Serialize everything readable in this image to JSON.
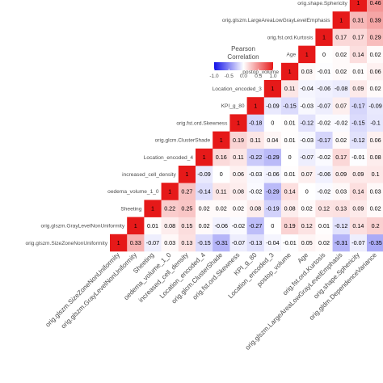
{
  "chart_data": {
    "type": "heatmap",
    "legend": {
      "title_line1": "Pearson",
      "title_line2": "Correlation",
      "ticks": [
        "-1.0",
        "-0.5",
        "0.0",
        "0.5",
        "1.0"
      ],
      "tick_values": [
        -1.0,
        -0.5,
        0.0,
        0.5,
        1.0
      ],
      "range": [
        -1,
        1
      ],
      "placement": "top-center"
    },
    "colors": {
      "negative": "#1010e8",
      "zero": "#ffffff",
      "positive": "#e61919"
    },
    "variables": [
      "orig.glszm.SizeZoneNonUniformity",
      "orig.glszm.GrayLevelNonUniformity",
      "Sheeting",
      "oedema_volume_1_0",
      "increased_cell_density",
      "Location_encoded_4",
      "orig.glcm.ClusterShade",
      "orig.fst.ord.Skewness",
      "KPI_g_80",
      "Location_encoded_3",
      "postop_volume",
      "Age",
      "orig.fst.ord.Kurtosis",
      "orig.glszm.LargeAreaLowGrayLevelEmphasis",
      "orig.shape.Sphericity",
      "orig.gldm.DependenceVariance"
    ],
    "cells": [
      {
        "row": 0,
        "col": 0,
        "value": 1,
        "label": "1"
      },
      {
        "row": 0,
        "col": 1,
        "value": 0.33,
        "label": "0.33"
      },
      {
        "row": 0,
        "col": 2,
        "value": -0.07,
        "label": "-0.07"
      },
      {
        "row": 0,
        "col": 3,
        "value": 0.03,
        "label": "0.03"
      },
      {
        "row": 0,
        "col": 4,
        "value": 0.13,
        "label": "0.13"
      },
      {
        "row": 0,
        "col": 5,
        "value": -0.15,
        "label": "-0.15"
      },
      {
        "row": 0,
        "col": 6,
        "value": -0.31,
        "label": "-0.31"
      },
      {
        "row": 0,
        "col": 7,
        "value": -0.07,
        "label": "-0.07"
      },
      {
        "row": 0,
        "col": 8,
        "value": -0.13,
        "label": "-0.13"
      },
      {
        "row": 0,
        "col": 9,
        "value": -0.04,
        "label": "-0.04"
      },
      {
        "row": 0,
        "col": 10,
        "value": -0.01,
        "label": "-0.01"
      },
      {
        "row": 0,
        "col": 11,
        "value": 0.05,
        "label": "0.05"
      },
      {
        "row": 0,
        "col": 12,
        "value": 0.02,
        "label": "0.02"
      },
      {
        "row": 0,
        "col": 13,
        "value": -0.31,
        "label": "-0.31"
      },
      {
        "row": 0,
        "col": 14,
        "value": -0.07,
        "label": "-0.07"
      },
      {
        "row": 0,
        "col": 15,
        "value": -0.35,
        "label": "-0.35"
      },
      {
        "row": 1,
        "col": 1,
        "value": 1,
        "label": "1"
      },
      {
        "row": 1,
        "col": 2,
        "value": 0.01,
        "label": "0.01"
      },
      {
        "row": 1,
        "col": 3,
        "value": 0.08,
        "label": "0.08"
      },
      {
        "row": 1,
        "col": 4,
        "value": 0.15,
        "label": "0.15"
      },
      {
        "row": 1,
        "col": 5,
        "value": 0.02,
        "label": "0.02"
      },
      {
        "row": 1,
        "col": 6,
        "value": -0.06,
        "label": "-0.06"
      },
      {
        "row": 1,
        "col": 7,
        "value": -0.02,
        "label": "-0.02"
      },
      {
        "row": 1,
        "col": 8,
        "value": -0.27,
        "label": "-0.27"
      },
      {
        "row": 1,
        "col": 9,
        "value": 0,
        "label": "0"
      },
      {
        "row": 1,
        "col": 10,
        "value": 0.19,
        "label": "0.19"
      },
      {
        "row": 1,
        "col": 11,
        "value": 0.12,
        "label": "0.12"
      },
      {
        "row": 1,
        "col": 12,
        "value": 0.01,
        "label": "0.01"
      },
      {
        "row": 1,
        "col": 13,
        "value": -0.12,
        "label": "-0.12"
      },
      {
        "row": 1,
        "col": 14,
        "value": 0.14,
        "label": "0.14"
      },
      {
        "row": 1,
        "col": 15,
        "value": 0.2,
        "label": "0.2"
      },
      {
        "row": 2,
        "col": 2,
        "value": 1,
        "label": "1"
      },
      {
        "row": 2,
        "col": 3,
        "value": 0.22,
        "label": "0.22"
      },
      {
        "row": 2,
        "col": 4,
        "value": 0.25,
        "label": "0.25"
      },
      {
        "row": 2,
        "col": 5,
        "value": 0.02,
        "label": "0.02"
      },
      {
        "row": 2,
        "col": 6,
        "value": 0.02,
        "label": "0.02"
      },
      {
        "row": 2,
        "col": 7,
        "value": 0.02,
        "label": "0.02"
      },
      {
        "row": 2,
        "col": 8,
        "value": 0.08,
        "label": "0.08"
      },
      {
        "row": 2,
        "col": 9,
        "value": -0.19,
        "label": "-0.19"
      },
      {
        "row": 2,
        "col": 10,
        "value": 0.08,
        "label": "0.08"
      },
      {
        "row": 2,
        "col": 11,
        "value": 0.02,
        "label": "0.02"
      },
      {
        "row": 2,
        "col": 12,
        "value": 0.12,
        "label": "0.12"
      },
      {
        "row": 2,
        "col": 13,
        "value": 0.13,
        "label": "0.13"
      },
      {
        "row": 2,
        "col": 14,
        "value": 0.09,
        "label": "0.09"
      },
      {
        "row": 2,
        "col": 15,
        "value": 0.02,
        "label": "0.02"
      },
      {
        "row": 3,
        "col": 3,
        "value": 1,
        "label": "1"
      },
      {
        "row": 3,
        "col": 4,
        "value": 0.27,
        "label": "0.27"
      },
      {
        "row": 3,
        "col": 5,
        "value": -0.14,
        "label": "-0.14"
      },
      {
        "row": 3,
        "col": 6,
        "value": 0.11,
        "label": "0.11"
      },
      {
        "row": 3,
        "col": 7,
        "value": 0.08,
        "label": "0.08"
      },
      {
        "row": 3,
        "col": 8,
        "value": -0.02,
        "label": "-0.02"
      },
      {
        "row": 3,
        "col": 9,
        "value": -0.29,
        "label": "-0.29"
      },
      {
        "row": 3,
        "col": 10,
        "value": 0.14,
        "label": "0.14"
      },
      {
        "row": 3,
        "col": 11,
        "value": 0,
        "label": "0"
      },
      {
        "row": 3,
        "col": 12,
        "value": -0.02,
        "label": "-0.02"
      },
      {
        "row": 3,
        "col": 13,
        "value": 0.03,
        "label": "0.03"
      },
      {
        "row": 3,
        "col": 14,
        "value": 0.14,
        "label": "0.14"
      },
      {
        "row": 3,
        "col": 15,
        "value": 0.03,
        "label": "0.03"
      },
      {
        "row": 4,
        "col": 4,
        "value": 1,
        "label": "1"
      },
      {
        "row": 4,
        "col": 5,
        "value": -0.09,
        "label": "-0.09"
      },
      {
        "row": 4,
        "col": 6,
        "value": 0,
        "label": "0"
      },
      {
        "row": 4,
        "col": 7,
        "value": 0.06,
        "label": "0.06"
      },
      {
        "row": 4,
        "col": 8,
        "value": -0.03,
        "label": "-0.03"
      },
      {
        "row": 4,
        "col": 9,
        "value": -0.06,
        "label": "-0.06"
      },
      {
        "row": 4,
        "col": 10,
        "value": 0.01,
        "label": "0.01"
      },
      {
        "row": 4,
        "col": 11,
        "value": 0.07,
        "label": "0.07"
      },
      {
        "row": 4,
        "col": 12,
        "value": -0.06,
        "label": "-0.06"
      },
      {
        "row": 4,
        "col": 13,
        "value": 0.09,
        "label": "0.09"
      },
      {
        "row": 4,
        "col": 14,
        "value": 0.09,
        "label": "0.09"
      },
      {
        "row": 4,
        "col": 15,
        "value": 0.1,
        "label": "0.1"
      },
      {
        "row": 5,
        "col": 5,
        "value": 1,
        "label": "1"
      },
      {
        "row": 5,
        "col": 6,
        "value": 0.16,
        "label": "0.16"
      },
      {
        "row": 5,
        "col": 7,
        "value": 0.11,
        "label": "0.11"
      },
      {
        "row": 5,
        "col": 8,
        "value": -0.22,
        "label": "-0.22"
      },
      {
        "row": 5,
        "col": 9,
        "value": -0.29,
        "label": "-0.29"
      },
      {
        "row": 5,
        "col": 10,
        "value": 0,
        "label": "0"
      },
      {
        "row": 5,
        "col": 11,
        "value": -0.07,
        "label": "-0.07"
      },
      {
        "row": 5,
        "col": 12,
        "value": -0.02,
        "label": "-0.02"
      },
      {
        "row": 5,
        "col": 13,
        "value": 0.17,
        "label": "0.17"
      },
      {
        "row": 5,
        "col": 14,
        "value": -0.01,
        "label": "-0.01"
      },
      {
        "row": 5,
        "col": 15,
        "value": 0.08,
        "label": "0.08"
      },
      {
        "row": 6,
        "col": 6,
        "value": 1,
        "label": "1"
      },
      {
        "row": 6,
        "col": 7,
        "value": 0.19,
        "label": "0.19"
      },
      {
        "row": 6,
        "col": 8,
        "value": 0.11,
        "label": "0.11"
      },
      {
        "row": 6,
        "col": 9,
        "value": 0.04,
        "label": "0.04"
      },
      {
        "row": 6,
        "col": 10,
        "value": 0.01,
        "label": "0.01"
      },
      {
        "row": 6,
        "col": 11,
        "value": -0.03,
        "label": "-0.03"
      },
      {
        "row": 6,
        "col": 12,
        "value": -0.17,
        "label": "-0.17"
      },
      {
        "row": 6,
        "col": 13,
        "value": 0.02,
        "label": "0.02"
      },
      {
        "row": 6,
        "col": 14,
        "value": -0.12,
        "label": "-0.12"
      },
      {
        "row": 6,
        "col": 15,
        "value": 0.06,
        "label": "0.06"
      },
      {
        "row": 7,
        "col": 7,
        "value": 1,
        "label": "1"
      },
      {
        "row": 7,
        "col": 8,
        "value": -0.18,
        "label": "-0.18"
      },
      {
        "row": 7,
        "col": 9,
        "value": 0,
        "label": "0"
      },
      {
        "row": 7,
        "col": 10,
        "value": 0.01,
        "label": "0.01"
      },
      {
        "row": 7,
        "col": 11,
        "value": -0.12,
        "label": "-0.12"
      },
      {
        "row": 7,
        "col": 12,
        "value": -0.02,
        "label": "-0.02"
      },
      {
        "row": 7,
        "col": 13,
        "value": -0.02,
        "label": "-0.02"
      },
      {
        "row": 7,
        "col": 14,
        "value": -0.15,
        "label": "-0.15"
      },
      {
        "row": 7,
        "col": 15,
        "value": -0.1,
        "label": "-0.1"
      },
      {
        "row": 8,
        "col": 8,
        "value": 1,
        "label": "1"
      },
      {
        "row": 8,
        "col": 9,
        "value": -0.09,
        "label": "-0.09"
      },
      {
        "row": 8,
        "col": 10,
        "value": -0.15,
        "label": "-0.15"
      },
      {
        "row": 8,
        "col": 11,
        "value": -0.03,
        "label": "-0.03"
      },
      {
        "row": 8,
        "col": 12,
        "value": -0.07,
        "label": "-0.07"
      },
      {
        "row": 8,
        "col": 13,
        "value": 0.07,
        "label": "0.07"
      },
      {
        "row": 8,
        "col": 14,
        "value": -0.17,
        "label": "-0.17"
      },
      {
        "row": 8,
        "col": 15,
        "value": -0.09,
        "label": "-0.09"
      },
      {
        "row": 9,
        "col": 9,
        "value": 1,
        "label": "1"
      },
      {
        "row": 9,
        "col": 10,
        "value": 0.11,
        "label": "0.11"
      },
      {
        "row": 9,
        "col": 11,
        "value": -0.04,
        "label": "-0.04"
      },
      {
        "row": 9,
        "col": 12,
        "value": -0.06,
        "label": "-0.06"
      },
      {
        "row": 9,
        "col": 13,
        "value": -0.08,
        "label": "-0.08"
      },
      {
        "row": 9,
        "col": 14,
        "value": 0.09,
        "label": "0.09"
      },
      {
        "row": 9,
        "col": 15,
        "value": 0.02,
        "label": "0.02"
      },
      {
        "row": 10,
        "col": 10,
        "value": 1,
        "label": "1"
      },
      {
        "row": 10,
        "col": 11,
        "value": 0.03,
        "label": "0.03"
      },
      {
        "row": 10,
        "col": 12,
        "value": -0.01,
        "label": "-0.01"
      },
      {
        "row": 10,
        "col": 13,
        "value": 0.02,
        "label": "0.02"
      },
      {
        "row": 10,
        "col": 14,
        "value": 0.01,
        "label": "0.01"
      },
      {
        "row": 10,
        "col": 15,
        "value": 0.06,
        "label": "0.06"
      },
      {
        "row": 11,
        "col": 11,
        "value": 1,
        "label": "1"
      },
      {
        "row": 11,
        "col": 12,
        "value": 0,
        "label": "0"
      },
      {
        "row": 11,
        "col": 13,
        "value": 0.02,
        "label": "0.02"
      },
      {
        "row": 11,
        "col": 14,
        "value": 0.14,
        "label": "0.14"
      },
      {
        "row": 11,
        "col": 15,
        "value": 0.02,
        "label": "0.02"
      },
      {
        "row": 12,
        "col": 12,
        "value": 1,
        "label": "1"
      },
      {
        "row": 12,
        "col": 13,
        "value": 0.17,
        "label": "0.17"
      },
      {
        "row": 12,
        "col": 14,
        "value": 0.17,
        "label": "0.17"
      },
      {
        "row": 12,
        "col": 15,
        "value": 0.29,
        "label": "0.29"
      },
      {
        "row": 13,
        "col": 13,
        "value": 1,
        "label": "1"
      },
      {
        "row": 13,
        "col": 14,
        "value": 0.31,
        "label": "0.31"
      },
      {
        "row": 13,
        "col": 15,
        "value": 0.39,
        "label": "0.39"
      },
      {
        "row": 14,
        "col": 14,
        "value": 1,
        "label": "1"
      },
      {
        "row": 14,
        "col": 15,
        "value": 0.46,
        "label": "0.46"
      },
      {
        "row": 15,
        "col": 15,
        "value": 1,
        "label": "1"
      }
    ]
  }
}
